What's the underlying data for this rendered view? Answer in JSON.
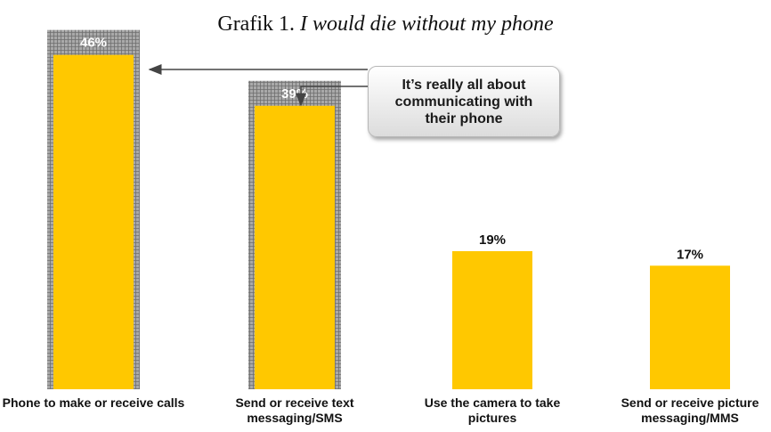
{
  "title_prefix": "Grafik 1.",
  "title_italic": "I would die without my phone",
  "callout_text": "It’s really all about communicating with their phone",
  "chart_data": {
    "type": "bar",
    "title": "Grafik 1. I would die without my phone",
    "categories": [
      "Phone to make or receive calls",
      "Send or receive text messaging/SMS",
      "Use the camera to take pictures",
      "Send or receive picture messaging/MMS"
    ],
    "values": [
      46,
      39,
      19,
      17
    ],
    "value_labels": [
      "46%",
      "39%",
      "19%",
      "17%"
    ],
    "highlighted": [
      true,
      true,
      false,
      false
    ],
    "ylim": [
      0,
      50
    ],
    "bar_color": "#ffc800",
    "highlight_color": "#9a9a9a",
    "value_label_color_highlight": "#ffffff",
    "value_label_color": "#111111",
    "grid": false,
    "legend": "none",
    "annotation": "It’s really all about communicating with their phone"
  }
}
